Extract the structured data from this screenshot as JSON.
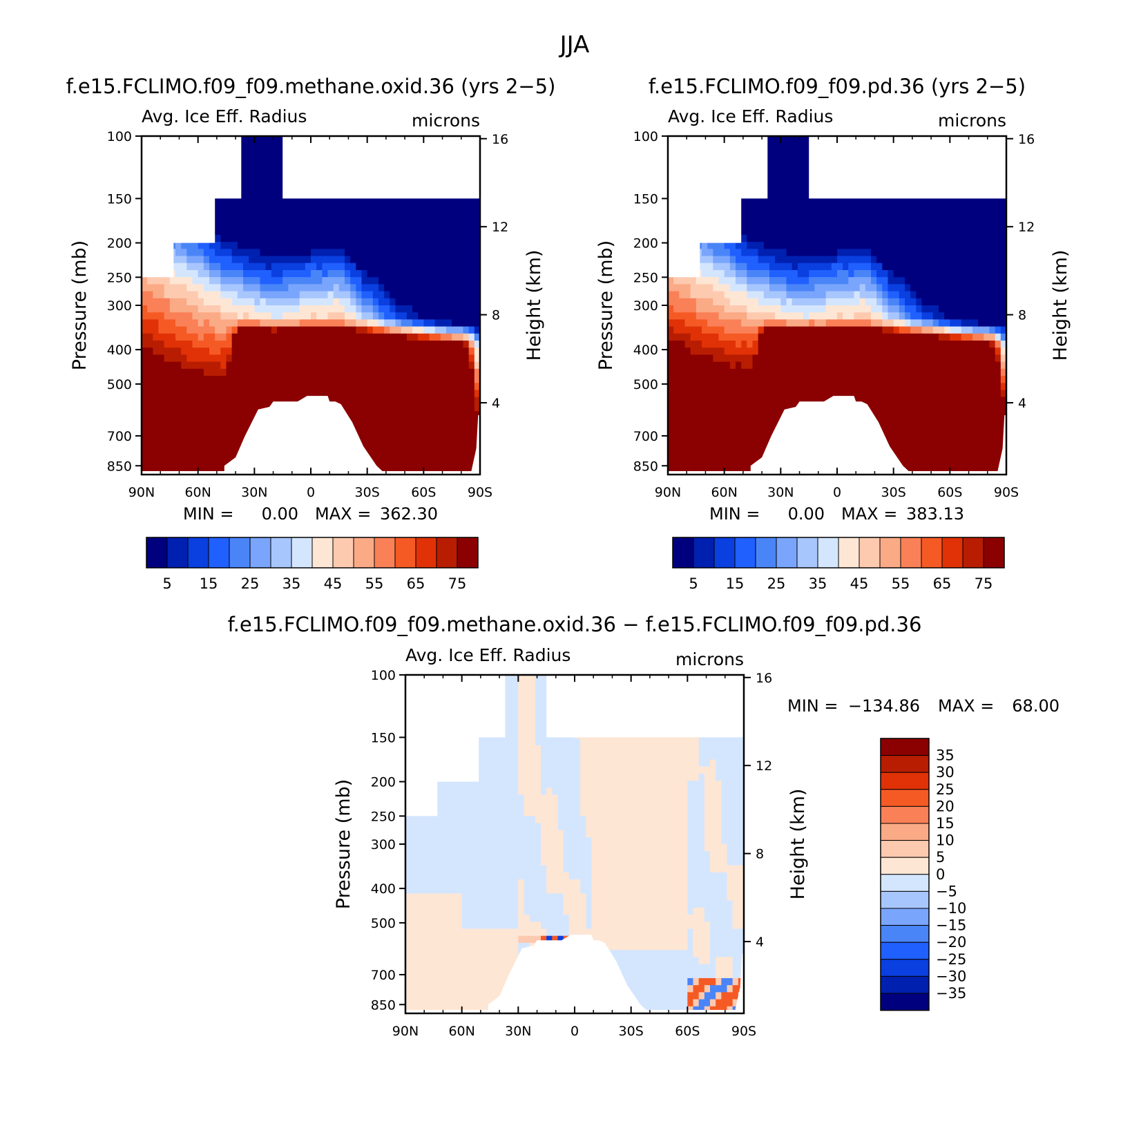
{
  "page_title": "JJA",
  "chart_data": [
    {
      "type": "heatmap",
      "id": "panel1",
      "title": "f.e15.FCLIMO.f09_f09.methane.oxid.36 (yrs 2−5)",
      "variable": "Avg. Ice Eff. Radius",
      "units": "microns",
      "ylabel_left": "Pressure (mb)",
      "ylabel_right": "Height (km)",
      "x_ticks": [
        "90N",
        "60N",
        "30N",
        "0",
        "30S",
        "60S",
        "90S"
      ],
      "x_range": [
        90,
        -90
      ],
      "pressure_ticks": [
        100,
        150,
        200,
        250,
        300,
        400,
        500,
        700,
        850
      ],
      "height_ticks": [
        16,
        12,
        8,
        4
      ],
      "min_label": "MIN =",
      "min_value": "0.00",
      "max_label": "MAX =",
      "max_value": "362.30",
      "colorbar_labels": [
        "5",
        "15",
        "25",
        "35",
        "45",
        "55",
        "65",
        "75"
      ],
      "contour_levels": [
        5,
        10,
        15,
        20,
        25,
        30,
        35,
        40,
        45,
        50,
        55,
        60,
        65,
        70,
        75
      ],
      "blob": {
        "eq_boost": 0
      }
    },
    {
      "type": "heatmap",
      "id": "panel2",
      "title": "f.e15.FCLIMO.f09_f09.pd.36 (yrs 2−5)",
      "variable": "Avg. Ice Eff. Radius",
      "units": "microns",
      "ylabel_left": "Pressure (mb)",
      "ylabel_right": "Height (km)",
      "x_ticks": [
        "90N",
        "60N",
        "30N",
        "0",
        "30S",
        "60S",
        "90S"
      ],
      "x_range": [
        90,
        -90
      ],
      "pressure_ticks": [
        100,
        150,
        200,
        250,
        300,
        400,
        500,
        700,
        850
      ],
      "height_ticks": [
        16,
        12,
        8,
        4
      ],
      "min_label": "MIN =",
      "min_value": "0.00",
      "max_label": "MAX =",
      "max_value": "383.13",
      "colorbar_labels": [
        "5",
        "15",
        "25",
        "35",
        "45",
        "55",
        "65",
        "75"
      ],
      "contour_levels": [
        5,
        10,
        15,
        20,
        25,
        30,
        35,
        40,
        45,
        50,
        55,
        60,
        65,
        70,
        75
      ],
      "blob": {
        "eq_boost": 3
      }
    },
    {
      "type": "heatmap",
      "id": "panel3",
      "title": "f.e15.FCLIMO.f09_f09.methane.oxid.36 − f.e15.FCLIMO.f09_f09.pd.36",
      "variable": "Avg. Ice Eff. Radius",
      "units": "microns",
      "ylabel_left": "Pressure (mb)",
      "ylabel_right": "Height (km)",
      "x_ticks": [
        "90N",
        "60N",
        "30N",
        "0",
        "30S",
        "60S",
        "90S"
      ],
      "x_range": [
        90,
        -90
      ],
      "pressure_ticks": [
        100,
        150,
        200,
        250,
        300,
        400,
        500,
        700,
        850
      ],
      "height_ticks": [
        16,
        12,
        8,
        4
      ],
      "min_label": "MIN =",
      "min_value": "−134.86",
      "max_label": "MAX =",
      "max_value": "68.00",
      "colorbar_labels": [
        "35",
        "30",
        "25",
        "20",
        "15",
        "10",
        "5",
        "0",
        "−5",
        "−10",
        "−15",
        "−20",
        "−25",
        "−30",
        "−35"
      ],
      "contour_levels": [
        -35,
        -30,
        -25,
        -20,
        -15,
        -10,
        -5,
        0,
        5,
        10,
        15,
        20,
        25,
        30,
        35
      ]
    }
  ],
  "palette": [
    "#00007f",
    "#0020b0",
    "#0a3fe0",
    "#2060ff",
    "#4a85f8",
    "#7aa5fc",
    "#a8c6fe",
    "#d4e6fe",
    "#fee6d4",
    "#fdcab0",
    "#fbaa86",
    "#fa8057",
    "#f55a25",
    "#e03206",
    "#b81d02",
    "#8b0000"
  ]
}
